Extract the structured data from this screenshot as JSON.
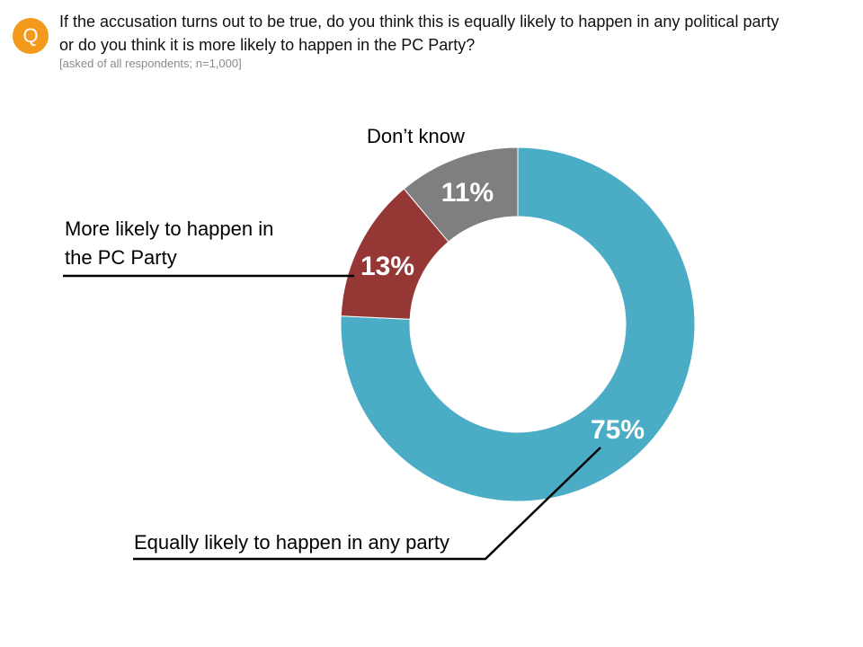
{
  "header": {
    "badge": "Q",
    "question_line1": "If the accusation turns out to be true, do you think this is equally likely to happen in any political party",
    "question_line2": "or do you think it is more likely to happen in the PC Party?",
    "note": "[asked of all respondents; n=1,000]"
  },
  "chart_data": {
    "type": "pie",
    "donut": true,
    "start_angle_deg": 0,
    "direction": "clockwise",
    "categories": [
      "Equally likely to happen in any party",
      "More likely to happen in the PC Party",
      "Don’t know"
    ],
    "values": [
      75,
      13,
      11
    ],
    "value_labels": [
      "75%",
      "13%",
      "11%"
    ],
    "label_lines": [
      [
        "Equally likely to happen in any party"
      ],
      [
        "More likely to happen in",
        "the PC Party"
      ],
      [
        "Don’t know"
      ]
    ],
    "colors": [
      "#4BACC6",
      "#953735",
      "#7F7F7F"
    ],
    "legend": "none"
  }
}
